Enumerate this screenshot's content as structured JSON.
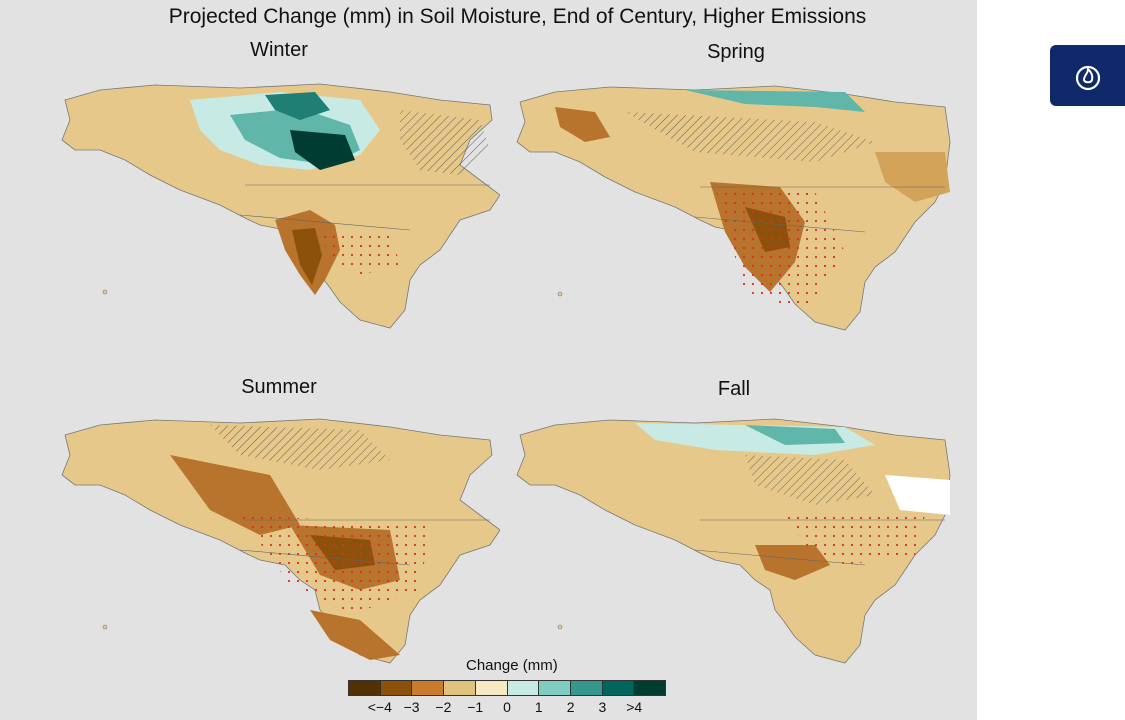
{
  "figure": {
    "title": "Projected Change (mm) in Soil Moisture, End of Century, Higher Emissions"
  },
  "panels": [
    {
      "season": "Winter"
    },
    {
      "season": "Spring"
    },
    {
      "season": "Summer"
    },
    {
      "season": "Fall"
    }
  ],
  "legend": {
    "title": "Change (mm)",
    "labels": [
      "<−4",
      "−3",
      "−2",
      "−1",
      "0",
      "1",
      "2",
      "3",
      ">4"
    ],
    "colors": [
      "#543005",
      "#8c510a",
      "#c97b2e",
      "#dfc27d",
      "#f6e8c3",
      "#c7eae5",
      "#80cdc1",
      "#35978f",
      "#01665e",
      "#003c30"
    ]
  },
  "map_colors": {
    "land_dry_light": "#e6c98a",
    "land_dry_mid": "#d4a35a",
    "land_dry_strong": "#b8732c",
    "land_dry_strongest": "#8c510a",
    "land_wet_light": "#c7eae5",
    "land_wet_mid": "#5fb6a9",
    "land_wet_strong": "#1f7f75",
    "land_wet_strongest": "#013c33",
    "near_zero": "#f3e3bd",
    "stipple": "#d9302c",
    "border": "#555555"
  },
  "side_button": {
    "icon": "fire-icon"
  }
}
